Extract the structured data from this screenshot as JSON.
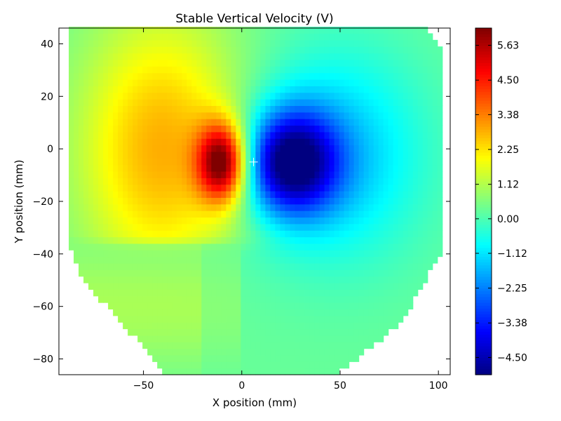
{
  "chart_data": {
    "type": "heatmap",
    "title": "Stable Vertical Velocity (V)",
    "xlabel": "X position (mm)",
    "ylabel": "Y position (mm)",
    "xlim": [
      -93,
      106
    ],
    "ylim": [
      -86,
      46
    ],
    "x_ticks": [
      -50,
      0,
      50,
      100
    ],
    "x_tick_labels": [
      "−50",
      "0",
      "50",
      "100"
    ],
    "y_ticks": [
      40,
      20,
      0,
      -20,
      -40,
      -60,
      -80
    ],
    "y_tick_labels": [
      "40",
      "20",
      "0",
      "−20",
      "−40",
      "−60",
      "−80"
    ],
    "colormap": "jet",
    "value_range": [
      -5.06,
      6.19
    ],
    "colorbar_ticks": [
      5.63,
      4.5,
      3.38,
      2.25,
      1.12,
      0.0,
      -1.12,
      -2.25,
      -3.38,
      -4.5
    ],
    "colorbar_tick_labels": [
      "5.63",
      "4.50",
      "3.38",
      "2.25",
      "1.12",
      "0.00",
      "−1.12",
      "−2.25",
      "−3.38",
      "−4.50"
    ],
    "grid": false,
    "features": [
      {
        "name": "positive-extremum",
        "x": -10,
        "y": -5,
        "value": 6.0
      },
      {
        "name": "negative-extremum",
        "x": 25,
        "y": -5,
        "value": -5.0
      },
      {
        "name": "center-marker",
        "x": 6,
        "y": -5
      }
    ]
  }
}
